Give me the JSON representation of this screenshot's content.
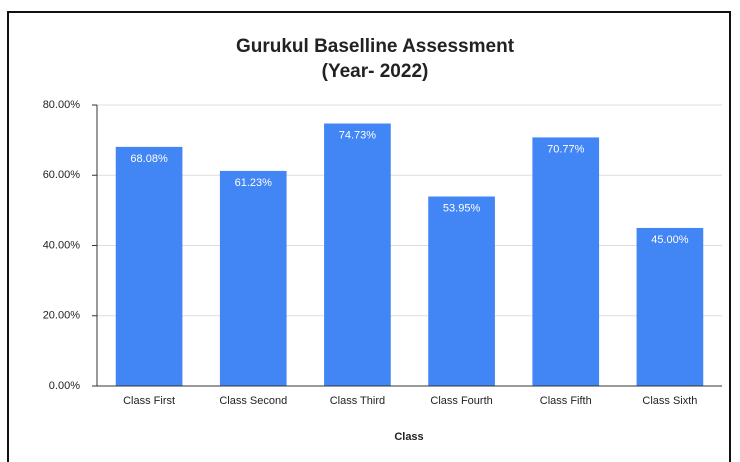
{
  "chart_data": {
    "type": "bar",
    "title": "Gurukul Baselline Assessment",
    "subtitle": "(Year- 2022)",
    "x_label": "Class",
    "categories": [
      "Class First",
      "Class Second",
      "Class Third",
      "Class Fourth",
      "Class Fifth",
      "Class Sixth"
    ],
    "values": [
      68.08,
      61.23,
      74.73,
      53.95,
      70.77,
      45.0
    ],
    "value_labels": [
      "68.08%",
      "61.23%",
      "74.73%",
      "53.95%",
      "70.77%",
      "45.00%"
    ],
    "color": "#4285f4",
    "ylim": [
      0,
      80
    ],
    "yticks": [
      {
        "value": 0,
        "label": "0.00%"
      },
      {
        "value": 20,
        "label": "20.00%"
      },
      {
        "value": 40,
        "label": "40.00%"
      },
      {
        "value": 60,
        "label": "60.00%"
      },
      {
        "value": 80,
        "label": "80.00%"
      }
    ],
    "grid": true
  }
}
